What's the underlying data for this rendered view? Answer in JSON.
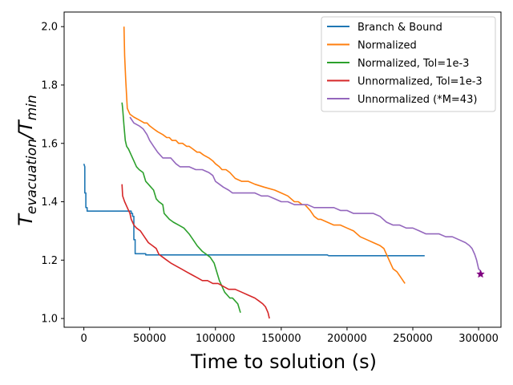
{
  "chart_data": {
    "type": "line",
    "xlabel": "Time to solution (s)",
    "ylabel": {
      "main": "T",
      "numerator_sub": "evacuation",
      "separator": "/",
      "denominator": "T",
      "denominator_sub": "min"
    },
    "xlim": [
      -15000,
      317000
    ],
    "ylim": [
      0.97,
      2.05
    ],
    "x_ticks": [
      0,
      50000,
      100000,
      150000,
      200000,
      250000,
      300000
    ],
    "y_ticks": [
      1.0,
      1.2,
      1.4,
      1.6,
      1.8,
      2.0
    ],
    "x_tick_labels": [
      "0",
      "50000",
      "100000",
      "150000",
      "200000",
      "250000",
      "300000"
    ],
    "y_tick_labels": [
      "1.0",
      "1.2",
      "1.4",
      "1.6",
      "1.8",
      "2.0"
    ],
    "grid": false,
    "legend_position": "top-right",
    "series": [
      {
        "name": "Branch & Bound",
        "color": "#1f77b4",
        "x": [
          0,
          700,
          700,
          1500,
          1500,
          2500,
          2500,
          36000,
          36000,
          37000,
          37000,
          38000,
          38000,
          39000,
          39000,
          41000,
          41000,
          47000,
          47000,
          185000,
          186000,
          259000
        ],
        "y": [
          1.53,
          1.52,
          1.43,
          1.43,
          1.38,
          1.38,
          1.368,
          1.368,
          1.36,
          1.36,
          1.35,
          1.35,
          1.27,
          1.27,
          1.222,
          1.222,
          1.222,
          1.222,
          1.218,
          1.218,
          1.215,
          1.215
        ]
      },
      {
        "name": "Normalized",
        "color": "#ff7f0e",
        "x": [
          30500,
          31000,
          31800,
          33000,
          35000,
          38000,
          42000,
          46000,
          48000,
          50000,
          53000,
          56000,
          60000,
          63000,
          65000,
          67000,
          70000,
          72000,
          75000,
          78000,
          80000,
          83000,
          86000,
          88000,
          91000,
          95000,
          98000,
          100000,
          103000,
          105000,
          108000,
          111000,
          115000,
          120000,
          125000,
          130000,
          137000,
          145000,
          150000,
          155000,
          160000,
          163000,
          166000,
          168000,
          170000,
          172000,
          175000,
          178000,
          180000,
          185000,
          190000,
          195000,
          200000,
          205000,
          210000,
          215000,
          220000,
          225000,
          228000,
          231000,
          233000,
          235000,
          238000,
          241000,
          244000
        ],
        "y": [
          2.0,
          1.9,
          1.82,
          1.72,
          1.7,
          1.69,
          1.68,
          1.67,
          1.67,
          1.66,
          1.65,
          1.64,
          1.63,
          1.62,
          1.62,
          1.61,
          1.61,
          1.6,
          1.6,
          1.59,
          1.59,
          1.58,
          1.57,
          1.57,
          1.56,
          1.55,
          1.54,
          1.53,
          1.52,
          1.51,
          1.51,
          1.5,
          1.48,
          1.47,
          1.47,
          1.46,
          1.45,
          1.44,
          1.43,
          1.42,
          1.4,
          1.4,
          1.39,
          1.39,
          1.38,
          1.37,
          1.35,
          1.34,
          1.34,
          1.33,
          1.32,
          1.32,
          1.31,
          1.3,
          1.28,
          1.27,
          1.26,
          1.25,
          1.24,
          1.21,
          1.19,
          1.17,
          1.16,
          1.14,
          1.12
        ]
      },
      {
        "name": "Normalized, Tol=1e-3",
        "color": "#2ca02c",
        "x": [
          29000,
          29500,
          30500,
          31500,
          32500,
          34000,
          36000,
          38000,
          40000,
          42000,
          45000,
          47000,
          49000,
          51000,
          53000,
          55000,
          57000,
          60000,
          61000,
          63000,
          65000,
          68000,
          72000,
          76000,
          80000,
          83000,
          86000,
          88000,
          90000,
          93000,
          96000,
          99000,
          101000,
          103000,
          105000,
          107000,
          109000,
          111000,
          113000,
          115000,
          117000,
          119000
        ],
        "y": [
          1.74,
          1.72,
          1.66,
          1.61,
          1.59,
          1.58,
          1.56,
          1.54,
          1.52,
          1.51,
          1.5,
          1.47,
          1.46,
          1.45,
          1.44,
          1.41,
          1.4,
          1.39,
          1.36,
          1.35,
          1.34,
          1.33,
          1.32,
          1.31,
          1.29,
          1.27,
          1.25,
          1.24,
          1.23,
          1.22,
          1.21,
          1.19,
          1.16,
          1.13,
          1.11,
          1.09,
          1.08,
          1.07,
          1.07,
          1.06,
          1.05,
          1.02
        ]
      },
      {
        "name": "Unnormalized, Tol=1e-3",
        "color": "#d62728",
        "x": [
          29000,
          29500,
          31000,
          33000,
          35000,
          36000,
          37000,
          38000,
          40000,
          43000,
          46000,
          49000,
          52000,
          55000,
          57000,
          60000,
          63000,
          66000,
          70000,
          74000,
          78000,
          82000,
          86000,
          90000,
          94000,
          98000,
          102000,
          106000,
          110000,
          115000,
          120000,
          125000,
          130000,
          133000,
          136000,
          138000,
          140000,
          141000
        ],
        "y": [
          1.46,
          1.42,
          1.4,
          1.38,
          1.36,
          1.34,
          1.33,
          1.32,
          1.31,
          1.3,
          1.28,
          1.26,
          1.25,
          1.24,
          1.22,
          1.21,
          1.2,
          1.19,
          1.18,
          1.17,
          1.16,
          1.15,
          1.14,
          1.13,
          1.13,
          1.12,
          1.12,
          1.11,
          1.1,
          1.1,
          1.09,
          1.08,
          1.07,
          1.06,
          1.05,
          1.04,
          1.02,
          1.0
        ]
      },
      {
        "name": "Unnormalized (*M=43)",
        "color": "#9467bd",
        "x": [
          35000,
          38000,
          42000,
          45000,
          48000,
          50000,
          53000,
          56000,
          60000,
          63000,
          66000,
          70000,
          73000,
          77000,
          80000,
          85000,
          90000,
          95000,
          98000,
          100000,
          103000,
          106000,
          110000,
          113000,
          116000,
          120000,
          125000,
          130000,
          135000,
          140000,
          145000,
          150000,
          155000,
          160000,
          165000,
          170000,
          175000,
          180000,
          185000,
          190000,
          195000,
          200000,
          205000,
          210000,
          215000,
          220000,
          225000,
          230000,
          235000,
          240000,
          245000,
          250000,
          255000,
          260000,
          265000,
          270000,
          275000,
          280000,
          285000,
          290000,
          293000,
          295000,
          297000,
          298500,
          300000,
          302000
        ],
        "y": [
          1.69,
          1.67,
          1.66,
          1.65,
          1.63,
          1.61,
          1.59,
          1.57,
          1.55,
          1.55,
          1.55,
          1.53,
          1.52,
          1.52,
          1.52,
          1.51,
          1.51,
          1.5,
          1.49,
          1.47,
          1.46,
          1.45,
          1.44,
          1.43,
          1.43,
          1.43,
          1.43,
          1.43,
          1.42,
          1.42,
          1.41,
          1.4,
          1.4,
          1.39,
          1.39,
          1.39,
          1.38,
          1.38,
          1.38,
          1.38,
          1.37,
          1.37,
          1.36,
          1.36,
          1.36,
          1.36,
          1.35,
          1.33,
          1.32,
          1.32,
          1.31,
          1.31,
          1.3,
          1.29,
          1.29,
          1.29,
          1.28,
          1.28,
          1.27,
          1.26,
          1.25,
          1.24,
          1.22,
          1.2,
          1.17,
          1.16
        ]
      }
    ],
    "marker": {
      "x": 301500,
      "y": 1.152,
      "symbol": "star",
      "color": "#800080"
    }
  }
}
